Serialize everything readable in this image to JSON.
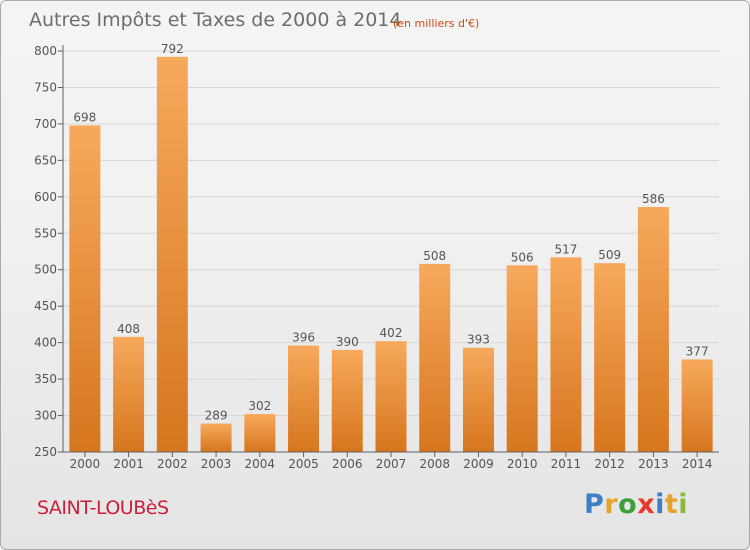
{
  "title": "Autres Impôts et Taxes de 2000 à 2014",
  "subtitle": "(en milliers d'€)",
  "commune": "SAINT-LOUBèS",
  "brand": "Proxiti",
  "colors": {
    "bar_light": "#f6a65a",
    "bar_dark": "#d87a22",
    "axis": "#606060",
    "grid": "#d7d7d7"
  },
  "chart_data": {
    "type": "bar",
    "title": "Autres Impôts et Taxes de 2000 à 2014",
    "subtitle": "(en milliers d'€)",
    "categories": [
      "2000",
      "2001",
      "2002",
      "2003",
      "2004",
      "2005",
      "2006",
      "2007",
      "2008",
      "2009",
      "2010",
      "2011",
      "2012",
      "2013",
      "2014"
    ],
    "values": [
      698,
      408,
      792,
      289,
      302,
      396,
      390,
      402,
      508,
      393,
      506,
      517,
      509,
      586,
      377
    ],
    "ylim": [
      250,
      800
    ],
    "yticks": [
      250,
      300,
      350,
      400,
      450,
      500,
      550,
      600,
      650,
      700,
      750,
      800
    ],
    "grid": true
  }
}
